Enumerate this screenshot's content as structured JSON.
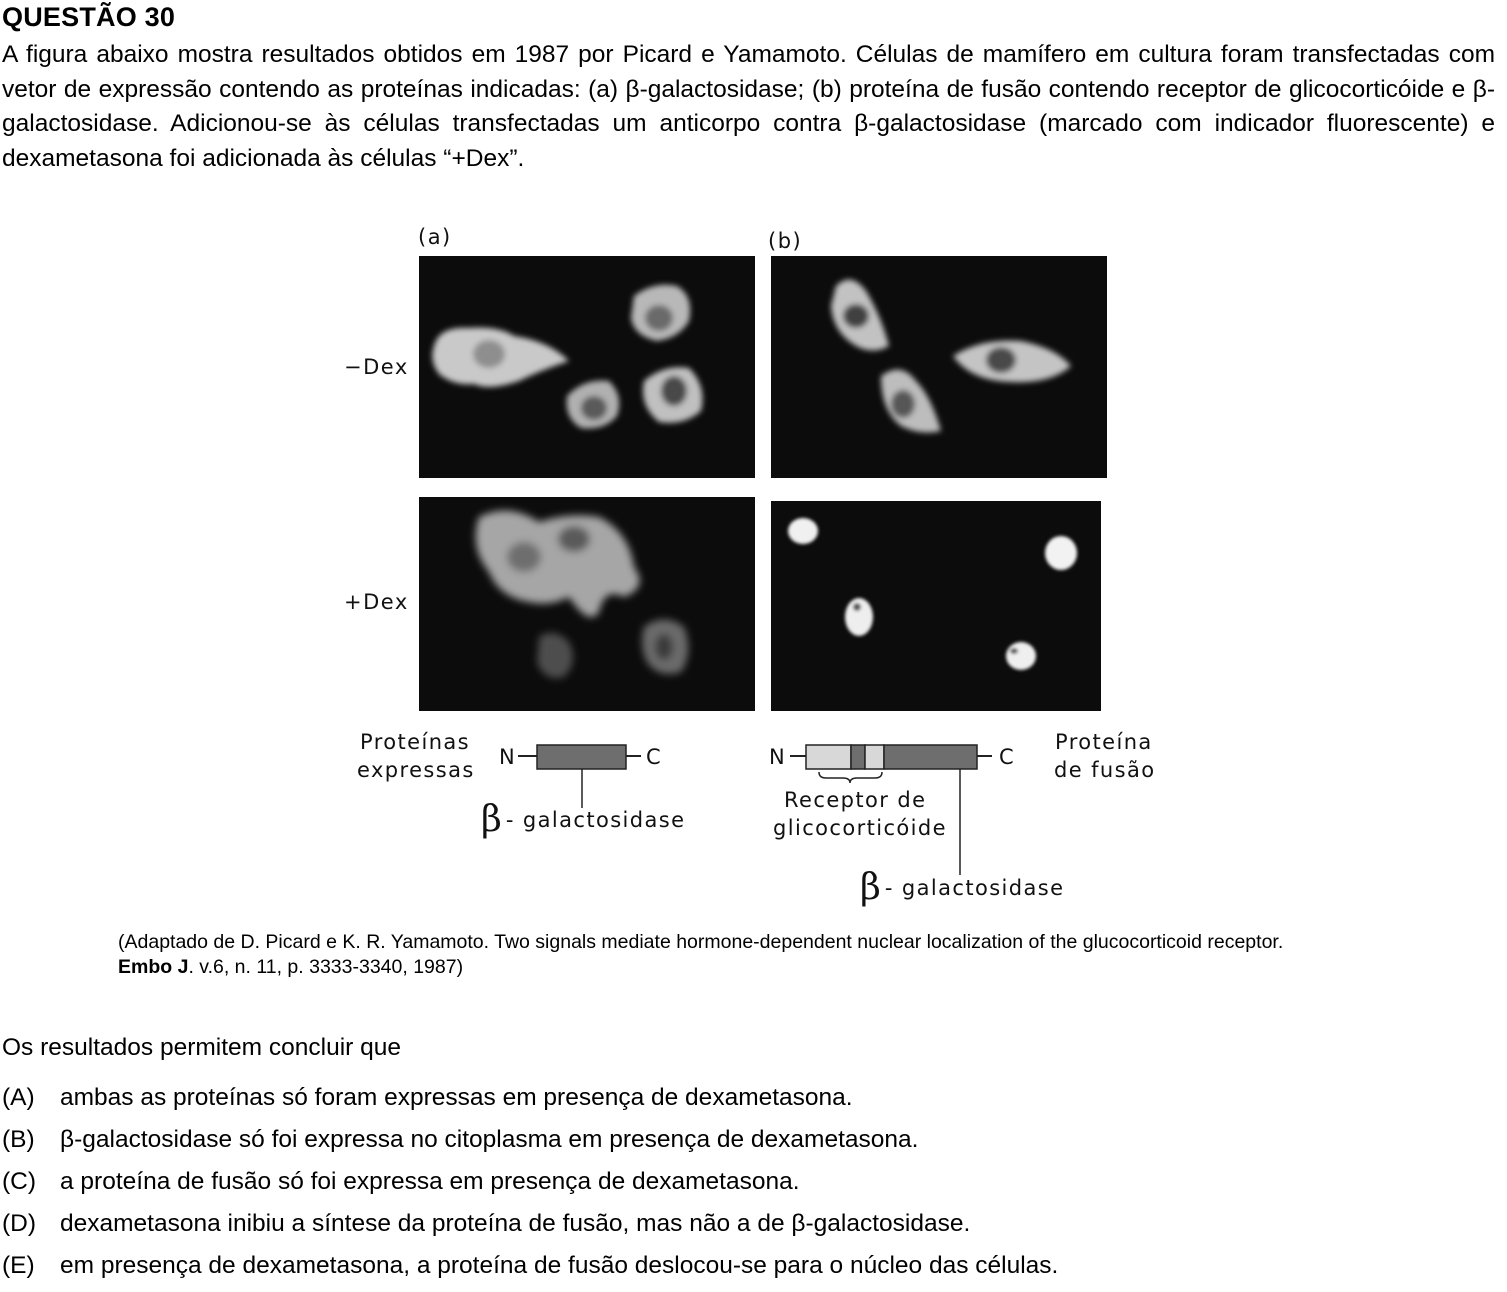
{
  "question": {
    "title": "QUESTÃO 30",
    "stem": "A figura abaixo mostra resultados obtidos em 1987 por Picard e Yamamoto. Células de mamífero em cultura foram transfectadas com vetor de expressão contendo as proteínas indicadas: (a) β-galactosidase; (b) proteína de fusão contendo receptor de glicocorticóide e β-galactosidase. Adicionou-se às células transfectadas um anticorpo contra β-galactosidase (marcado com indicador fluorescente) e dexametasona foi adicionada às células “+Dex”."
  },
  "figure": {
    "column_a_label": "(a)",
    "column_b_label": "(b)",
    "row_minus_label": "−Dex",
    "row_plus_label": "+Dex",
    "left_caption_line1": "Proteínas",
    "left_caption_line2": "expressas",
    "right_caption_line1": "Proteína",
    "right_caption_line2": "de fusão",
    "n_label_a": "N",
    "c_label_a": "C",
    "n_label_b": "N",
    "c_label_b": "C",
    "beta_symbol": "β",
    "beta_gal_label_a": "- galactosidase",
    "beta_gal_label_b": "- galactosidase",
    "receptor_line1": "Receptor de",
    "receptor_line2": "glicocorticóide"
  },
  "citation": {
    "text": "(Adaptado de D. Picard e K. R. Yamamoto. Two signals mediate hormone-dependent nuclear localization of the glucocorticoid receptor.",
    "journal": "Embo J",
    "details": ". v.6, n. 11, p. 3333-3340, 1987)"
  },
  "prompt": "Os resultados permitem concluir que",
  "options": [
    {
      "letter": "(A)",
      "text": "ambas as proteínas só foram expressas em presença de dexametasona."
    },
    {
      "letter": "(B)",
      "text": "β-galactosidase só foi expressa no citoplasma em presença de dexametasona."
    },
    {
      "letter": "(C)",
      "text": "a proteína de fusão só foi expressa em presença de dexametasona."
    },
    {
      "letter": "(D)",
      "text": "dexametasona inibiu a síntese da proteína de fusão, mas não a de β-galactosidase."
    },
    {
      "letter": "(E)",
      "text": "em presença de dexametasona, a proteína de fusão deslocou-se para o núcleo das células."
    }
  ],
  "colors": {
    "panel_background": "#0c0c0c",
    "bar_dark": "#6e6e6e",
    "bar_light": "#d8d8d8"
  }
}
